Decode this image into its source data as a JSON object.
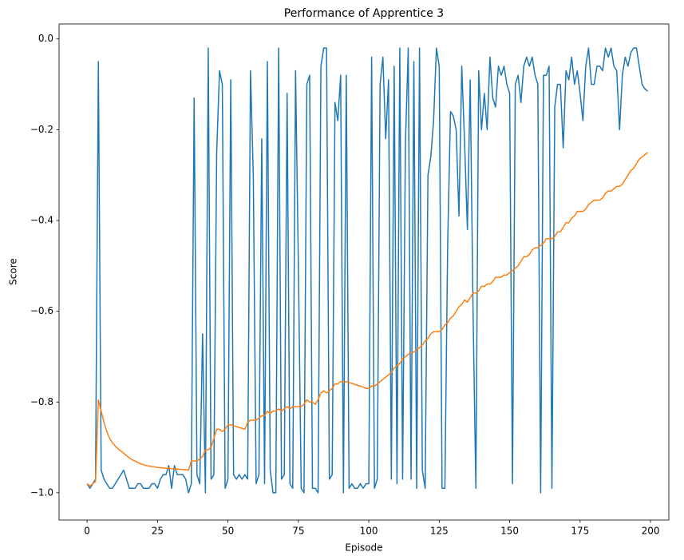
{
  "chart_data": {
    "type": "line",
    "title": "Performance of Apprentice 3",
    "x_label": "Episode",
    "y_label": "Score",
    "x": [
      0,
      1,
      2,
      3,
      4,
      5,
      6,
      7,
      8,
      9,
      10,
      11,
      12,
      13,
      14,
      15,
      16,
      17,
      18,
      19,
      20,
      21,
      22,
      23,
      24,
      25,
      26,
      27,
      28,
      29,
      30,
      31,
      32,
      33,
      34,
      35,
      36,
      37,
      38,
      39,
      40,
      41,
      42,
      43,
      44,
      45,
      46,
      47,
      48,
      49,
      50,
      51,
      52,
      53,
      54,
      55,
      56,
      57,
      58,
      59,
      60,
      61,
      62,
      63,
      64,
      65,
      66,
      67,
      68,
      69,
      70,
      71,
      72,
      73,
      74,
      75,
      76,
      77,
      78,
      79,
      80,
      81,
      82,
      83,
      84,
      85,
      86,
      87,
      88,
      89,
      90,
      91,
      92,
      93,
      94,
      95,
      96,
      97,
      98,
      99,
      100,
      101,
      102,
      103,
      104,
      105,
      106,
      107,
      108,
      109,
      110,
      111,
      112,
      113,
      114,
      115,
      116,
      117,
      118,
      119,
      120,
      121,
      122,
      123,
      124,
      125,
      126,
      127,
      128,
      129,
      130,
      131,
      132,
      133,
      134,
      135,
      136,
      137,
      138,
      139,
      140,
      141,
      142,
      143,
      144,
      145,
      146,
      147,
      148,
      149,
      150,
      151,
      152,
      153,
      154,
      155,
      156,
      157,
      158,
      159,
      160,
      161,
      162,
      163,
      164,
      165,
      166,
      167,
      168,
      169,
      170,
      171,
      172,
      173,
      174,
      175,
      176,
      177,
      178,
      179,
      180,
      181,
      182,
      183,
      184,
      185,
      186,
      187,
      188,
      189,
      190,
      191,
      192,
      193,
      194,
      195,
      196,
      197,
      198,
      199
    ],
    "series": [
      {
        "color": "#1f77b4",
        "values": [
          -0.98,
          -0.99,
          -0.98,
          -0.97,
          -0.05,
          -0.95,
          -0.97,
          -0.98,
          -0.99,
          -0.99,
          -0.98,
          -0.97,
          -0.96,
          -0.95,
          -0.97,
          -0.99,
          -0.99,
          -0.99,
          -0.98,
          -0.98,
          -0.99,
          -0.99,
          -0.99,
          -0.98,
          -0.98,
          -0.99,
          -0.97,
          -0.96,
          -0.96,
          -0.94,
          -0.99,
          -0.94,
          -0.96,
          -0.96,
          -0.96,
          -0.97,
          -1.0,
          -0.98,
          -0.13,
          -0.96,
          -0.98,
          -0.65,
          -1.0,
          -0.02,
          -0.97,
          -0.96,
          -0.25,
          -0.07,
          -0.1,
          -0.99,
          -0.97,
          -0.09,
          -0.96,
          -0.97,
          -0.96,
          -0.97,
          -0.96,
          -0.97,
          -0.07,
          -0.3,
          -0.98,
          -0.96,
          -0.22,
          -0.98,
          -0.05,
          -0.95,
          -1.0,
          -1.0,
          -0.02,
          -0.97,
          -0.96,
          -0.12,
          -0.98,
          -0.99,
          -0.07,
          -0.5,
          -0.99,
          -1.0,
          -0.1,
          -0.08,
          -0.99,
          -0.99,
          -1.0,
          -0.06,
          -0.02,
          -0.02,
          -0.97,
          -0.96,
          -0.14,
          -0.18,
          -0.08,
          -1.0,
          -0.08,
          -0.99,
          -0.98,
          -0.99,
          -0.99,
          -0.98,
          -0.99,
          -0.98,
          -0.98,
          -0.04,
          -0.99,
          -0.97,
          -0.1,
          -0.04,
          -0.22,
          -0.09,
          -0.97,
          -0.06,
          -0.98,
          -0.02,
          -0.97,
          -0.23,
          -0.02,
          -0.97,
          -0.05,
          -0.99,
          -0.02,
          -0.95,
          -0.99,
          -0.3,
          -0.26,
          -0.18,
          -0.02,
          -0.06,
          -0.99,
          -0.99,
          -0.45,
          -0.16,
          -0.17,
          -0.2,
          -0.39,
          -0.06,
          -0.23,
          -0.42,
          -0.09,
          -0.6,
          -0.99,
          -0.07,
          -0.2,
          -0.12,
          -0.2,
          -0.04,
          -0.13,
          -0.15,
          -0.06,
          -0.08,
          -0.06,
          -0.1,
          -0.12,
          -0.98,
          -0.1,
          -0.08,
          -0.14,
          -0.06,
          -0.04,
          -0.06,
          -0.04,
          -0.08,
          -0.1,
          -1.0,
          -0.08,
          -0.08,
          -0.06,
          -0.99,
          -0.15,
          -0.1,
          -0.1,
          -0.24,
          -0.07,
          -0.09,
          -0.04,
          -0.1,
          -0.07,
          -0.12,
          -0.18,
          -0.06,
          -0.02,
          -0.1,
          -0.1,
          -0.06,
          -0.06,
          -0.07,
          -0.02,
          -0.04,
          -0.02,
          -0.06,
          -0.07,
          -0.2,
          -0.08,
          -0.04,
          -0.06,
          -0.03,
          -0.02,
          -0.02,
          -0.06,
          -0.1,
          -0.11,
          -0.115
        ]
      },
      {
        "color": "#ff7f0e",
        "values": [
          -0.98,
          -0.985,
          -0.98,
          -0.975,
          -0.795,
          -0.82,
          -0.845,
          -0.865,
          -0.88,
          -0.89,
          -0.897,
          -0.903,
          -0.908,
          -0.913,
          -0.918,
          -0.923,
          -0.927,
          -0.93,
          -0.933,
          -0.936,
          -0.938,
          -0.94,
          -0.941,
          -0.942,
          -0.943,
          -0.944,
          -0.945,
          -0.945,
          -0.946,
          -0.946,
          -0.947,
          -0.947,
          -0.948,
          -0.948,
          -0.949,
          -0.949,
          -0.95,
          -0.93,
          -0.93,
          -0.93,
          -0.925,
          -0.92,
          -0.905,
          -0.905,
          -0.9,
          -0.88,
          -0.86,
          -0.86,
          -0.865,
          -0.86,
          -0.85,
          -0.85,
          -0.852,
          -0.854,
          -0.856,
          -0.858,
          -0.86,
          -0.845,
          -0.84,
          -0.84,
          -0.84,
          -0.835,
          -0.83,
          -0.83,
          -0.82,
          -0.825,
          -0.82,
          -0.82,
          -0.815,
          -0.82,
          -0.815,
          -0.81,
          -0.815,
          -0.81,
          -0.81,
          -0.81,
          -0.81,
          -0.805,
          -0.795,
          -0.8,
          -0.8,
          -0.805,
          -0.795,
          -0.78,
          -0.775,
          -0.78,
          -0.775,
          -0.77,
          -0.76,
          -0.76,
          -0.755,
          -0.755,
          -0.755,
          -0.757,
          -0.759,
          -0.761,
          -0.763,
          -0.765,
          -0.767,
          -0.77,
          -0.77,
          -0.765,
          -0.765,
          -0.76,
          -0.755,
          -0.75,
          -0.745,
          -0.74,
          -0.735,
          -0.725,
          -0.72,
          -0.715,
          -0.705,
          -0.7,
          -0.695,
          -0.69,
          -0.69,
          -0.685,
          -0.68,
          -0.675,
          -0.665,
          -0.66,
          -0.65,
          -0.645,
          -0.645,
          -0.645,
          -0.64,
          -0.63,
          -0.625,
          -0.615,
          -0.61,
          -0.6,
          -0.59,
          -0.585,
          -0.575,
          -0.58,
          -0.57,
          -0.56,
          -0.56,
          -0.555,
          -0.545,
          -0.545,
          -0.54,
          -0.54,
          -0.535,
          -0.525,
          -0.525,
          -0.525,
          -0.52,
          -0.52,
          -0.515,
          -0.51,
          -0.505,
          -0.5,
          -0.49,
          -0.48,
          -0.48,
          -0.475,
          -0.465,
          -0.46,
          -0.46,
          -0.455,
          -0.45,
          -0.44,
          -0.44,
          -0.44,
          -0.435,
          -0.425,
          -0.425,
          -0.415,
          -0.405,
          -0.405,
          -0.395,
          -0.39,
          -0.38,
          -0.38,
          -0.38,
          -0.375,
          -0.365,
          -0.36,
          -0.355,
          -0.355,
          -0.355,
          -0.35,
          -0.34,
          -0.335,
          -0.335,
          -0.33,
          -0.325,
          -0.325,
          -0.32,
          -0.31,
          -0.3,
          -0.29,
          -0.285,
          -0.275,
          -0.265,
          -0.26,
          -0.255,
          -0.25
        ]
      }
    ],
    "xlim": [
      -9.95,
      206.5
    ],
    "xticks": [
      0,
      25,
      50,
      75,
      100,
      125,
      150,
      175,
      200
    ],
    "ylim": [
      -1.06,
      0.033
    ],
    "yticks": [
      {
        "value": -1.0,
        "label": "−1.0"
      },
      {
        "value": -0.8,
        "label": "−0.8"
      },
      {
        "value": -0.6,
        "label": "−0.6"
      },
      {
        "value": -0.4,
        "label": "−0.4"
      },
      {
        "value": -0.2,
        "label": "−0.2"
      },
      {
        "value": 0.0,
        "label": "0.0"
      }
    ],
    "grid": false
  }
}
